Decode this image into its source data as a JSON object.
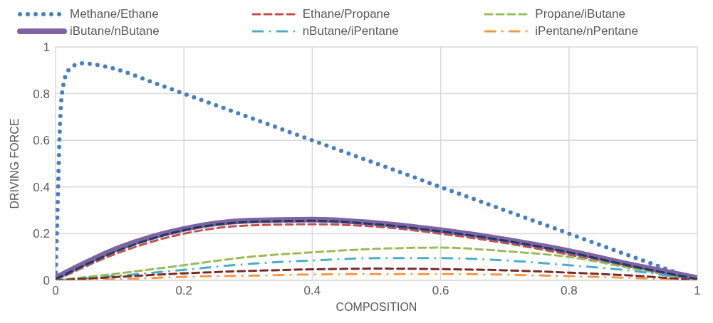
{
  "chart_data": {
    "type": "line",
    "xlabel": "COMPOSITION",
    "ylabel": "DRIVING FORCE",
    "xlim": [
      0,
      1
    ],
    "ylim": [
      0,
      1
    ],
    "xticks": [
      0,
      0.2,
      0.4,
      0.6,
      0.8,
      1
    ],
    "yticks": [
      0,
      0.2,
      0.4,
      0.6,
      0.8,
      1
    ],
    "grid": true,
    "legend": "top",
    "marker": "none",
    "series": [
      {
        "name": "Methane/Ethane",
        "color": "#4a7ebf",
        "line_style": "dotted",
        "x": [
          0,
          0.002,
          0.004,
          0.006,
          0.01,
          0.02,
          0.04,
          0.06,
          0.1,
          0.15,
          0.2,
          0.3,
          0.4,
          0.5,
          0.6,
          0.7,
          0.8,
          0.85,
          0.9,
          0.95,
          1
        ],
        "values": [
          0,
          0.2,
          0.4,
          0.6,
          0.8,
          0.9,
          0.93,
          0.925,
          0.9,
          0.85,
          0.8,
          0.7,
          0.6,
          0.5,
          0.4,
          0.3,
          0.2,
          0.15,
          0.1,
          0.05,
          0
        ]
      },
      {
        "name": "Ethane/Propane",
        "color": "#c0504d",
        "line_style": "dashed",
        "x": [
          0,
          0.1,
          0.2,
          0.3,
          0.4,
          0.5,
          0.6,
          0.7,
          0.8,
          0.9,
          1
        ],
        "values": [
          0,
          0.12,
          0.2,
          0.235,
          0.24,
          0.23,
          0.2,
          0.16,
          0.11,
          0.055,
          0
        ]
      },
      {
        "name": "Propane/iButane",
        "color": "#9bbb59",
        "line_style": "dashed",
        "x": [
          0,
          0.1,
          0.2,
          0.3,
          0.4,
          0.5,
          0.6,
          0.7,
          0.8,
          0.9,
          1
        ],
        "values": [
          0,
          0.03,
          0.065,
          0.1,
          0.12,
          0.135,
          0.14,
          0.125,
          0.1,
          0.05,
          0
        ]
      },
      {
        "name": "iButane/nButane",
        "color": "#8064a2",
        "line_style": "solid",
        "x": [
          0,
          0.1,
          0.2,
          0.3,
          0.4,
          0.5,
          0.6,
          0.7,
          0.8,
          0.9,
          1
        ],
        "values": [
          0.01,
          0.14,
          0.22,
          0.255,
          0.26,
          0.245,
          0.215,
          0.175,
          0.125,
          0.065,
          0.01
        ]
      },
      {
        "name": "nButane/iPentane",
        "color": "#4bacc6",
        "line_style": "dashdot",
        "x": [
          0,
          0.1,
          0.2,
          0.3,
          0.4,
          0.5,
          0.6,
          0.7,
          0.8,
          0.9,
          1
        ],
        "values": [
          0,
          0.02,
          0.045,
          0.07,
          0.085,
          0.095,
          0.095,
          0.085,
          0.065,
          0.04,
          0
        ]
      },
      {
        "name": "iPentane/nPentane",
        "color": "#f79646",
        "line_style": "dashdot",
        "x": [
          0,
          0.1,
          0.2,
          0.3,
          0.4,
          0.5,
          0.6,
          0.7,
          0.8,
          0.9,
          1
        ],
        "values": [
          0,
          0.005,
          0.015,
          0.02,
          0.025,
          0.027,
          0.027,
          0.024,
          0.018,
          0.01,
          0
        ]
      },
      {
        "color": "#1f3a5f",
        "line_style": "dashed",
        "x": [
          0,
          0.1,
          0.2,
          0.3,
          0.4,
          0.5,
          0.6,
          0.7,
          0.8,
          0.9,
          1
        ],
        "values": [
          0.005,
          0.13,
          0.215,
          0.25,
          0.255,
          0.24,
          0.21,
          0.17,
          0.12,
          0.06,
          0.005
        ]
      },
      {
        "color": "#772c2a",
        "line_style": "dashed",
        "x": [
          0,
          0.1,
          0.2,
          0.3,
          0.4,
          0.5,
          0.6,
          0.7,
          0.8,
          0.9,
          1
        ],
        "values": [
          0,
          0.015,
          0.03,
          0.04,
          0.047,
          0.05,
          0.048,
          0.043,
          0.033,
          0.02,
          0
        ]
      }
    ]
  }
}
